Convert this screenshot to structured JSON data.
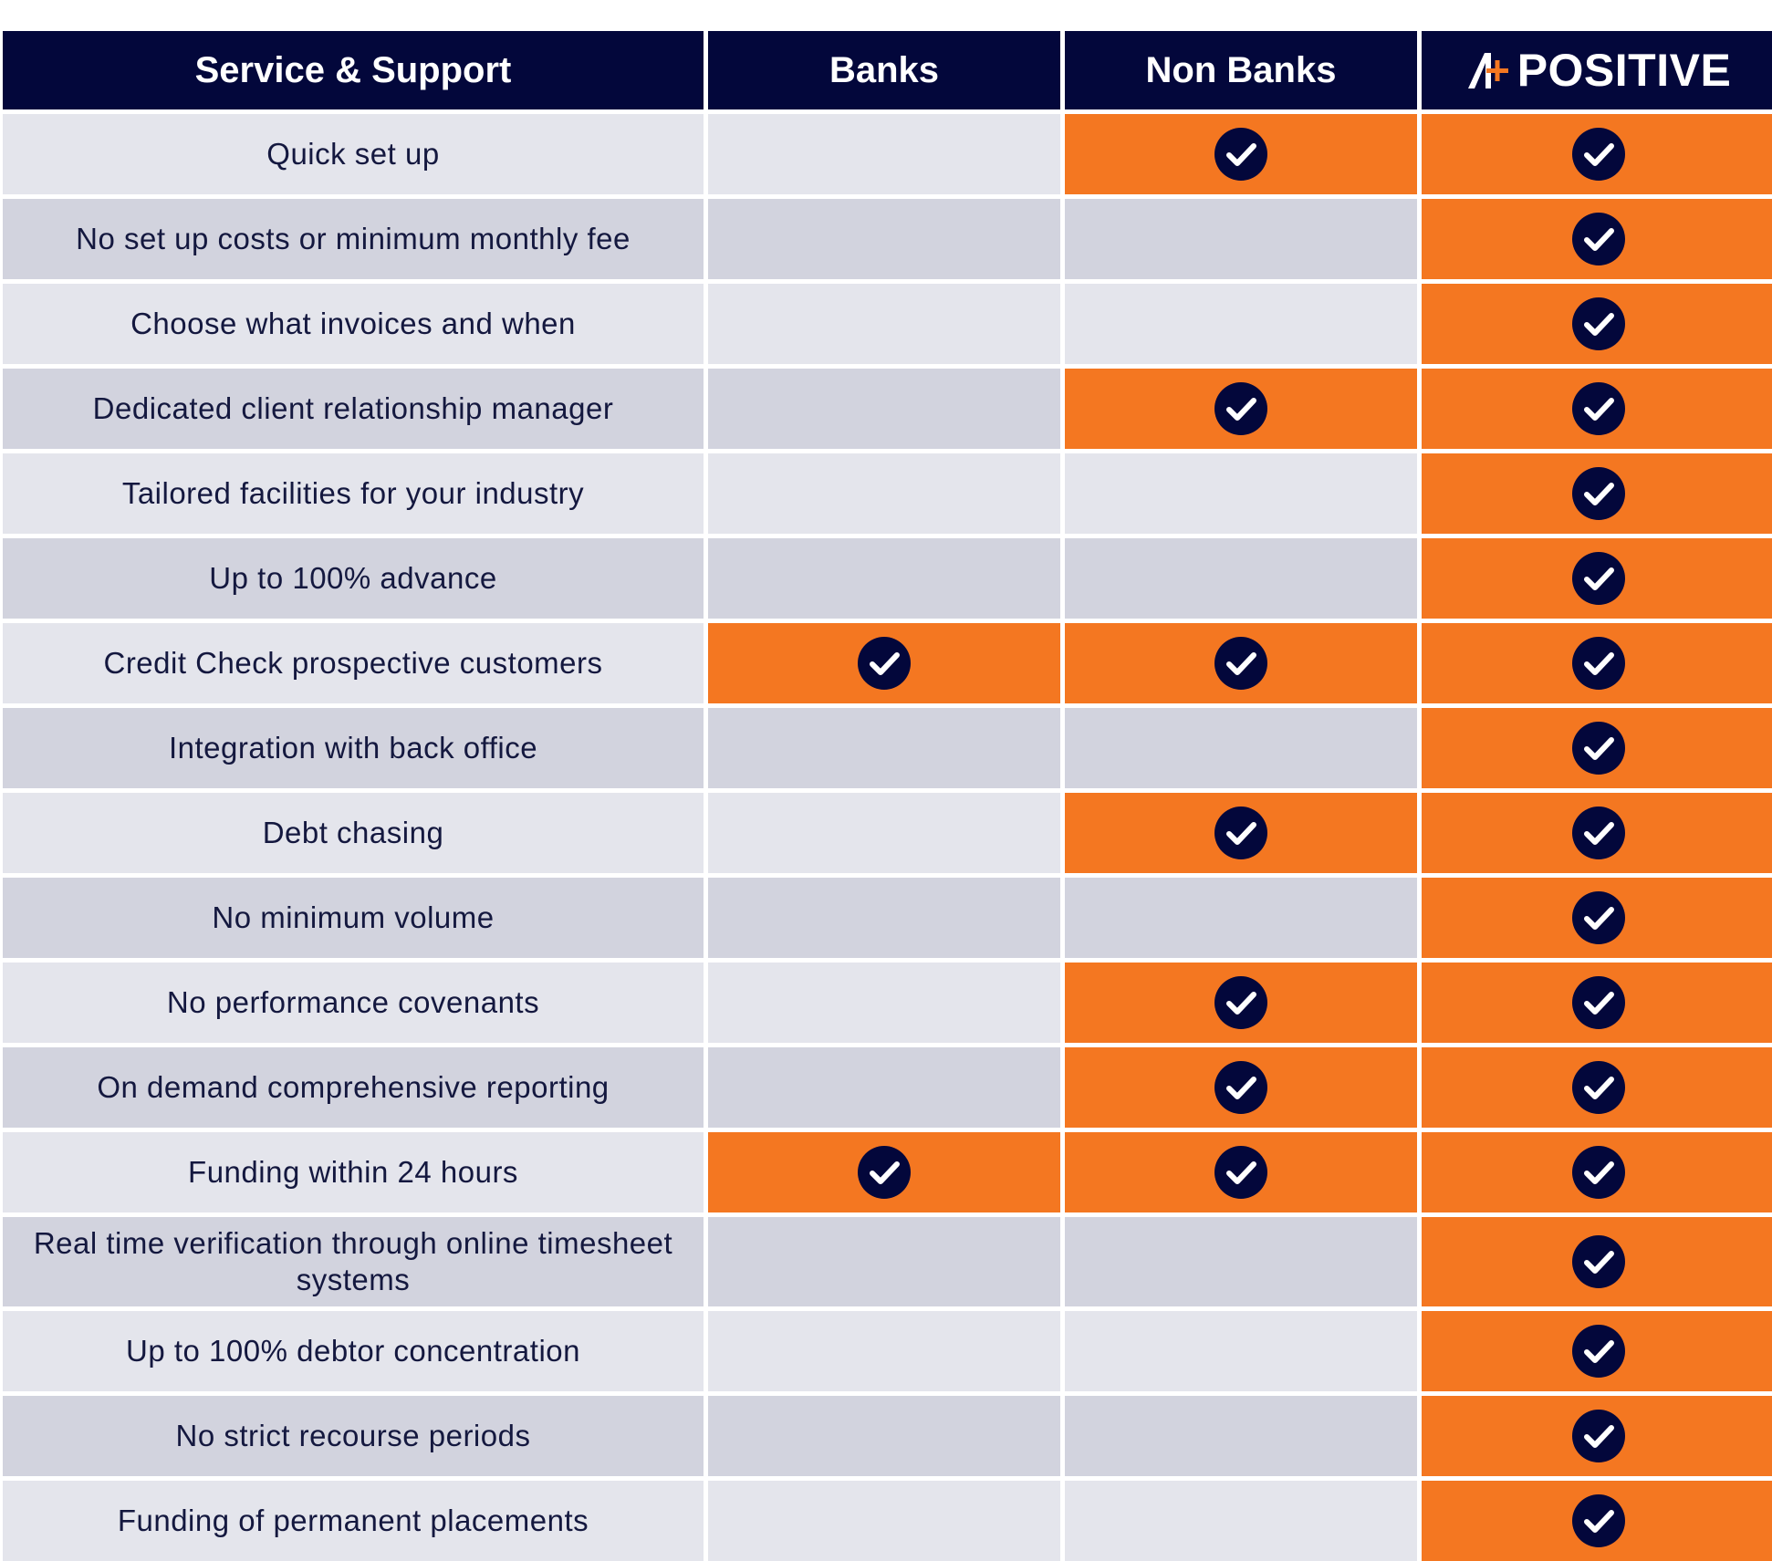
{
  "header": {
    "col_service": "Service & Support",
    "col_banks": "Banks",
    "col_nonbanks": "Non Banks",
    "col_positive": "POSITIVE"
  },
  "colors": {
    "header_bg": "#03073b",
    "accent": "#f47721",
    "row_light": "#e4e5ec",
    "row_dark": "#d2d3de",
    "check_bg": "#03073b"
  },
  "icons": {
    "check": "check-circle-icon",
    "logo": "positive-logo-icon"
  },
  "rows": [
    {
      "feature": "Quick set up",
      "banks": false,
      "nonbanks": true,
      "positive": true
    },
    {
      "feature": "No set up costs or minimum monthly fee",
      "banks": false,
      "nonbanks": false,
      "positive": true
    },
    {
      "feature": "Choose what invoices and when",
      "banks": false,
      "nonbanks": false,
      "positive": true
    },
    {
      "feature": "Dedicated client relationship manager",
      "banks": false,
      "nonbanks": true,
      "positive": true
    },
    {
      "feature": "Tailored facilities for your industry",
      "banks": false,
      "nonbanks": false,
      "positive": true
    },
    {
      "feature": "Up to 100% advance",
      "banks": false,
      "nonbanks": false,
      "positive": true
    },
    {
      "feature": "Credit Check prospective customers",
      "banks": true,
      "nonbanks": true,
      "positive": true
    },
    {
      "feature": "Integration with back office",
      "banks": false,
      "nonbanks": false,
      "positive": true
    },
    {
      "feature": "Debt chasing",
      "banks": false,
      "nonbanks": true,
      "positive": true
    },
    {
      "feature": "No minimum volume",
      "banks": false,
      "nonbanks": false,
      "positive": true
    },
    {
      "feature": "No performance covenants",
      "banks": false,
      "nonbanks": true,
      "positive": true
    },
    {
      "feature": "On demand comprehensive reporting",
      "banks": false,
      "nonbanks": true,
      "positive": true
    },
    {
      "feature": "Funding within 24 hours",
      "banks": true,
      "nonbanks": true,
      "positive": true
    },
    {
      "feature": "Real time verification through online timesheet systems",
      "banks": false,
      "nonbanks": false,
      "positive": true
    },
    {
      "feature": "Up to 100% debtor concentration",
      "banks": false,
      "nonbanks": false,
      "positive": true
    },
    {
      "feature": "No strict recourse periods",
      "banks": false,
      "nonbanks": false,
      "positive": true
    },
    {
      "feature": "Funding of permanent placements",
      "banks": false,
      "nonbanks": false,
      "positive": true
    }
  ]
}
